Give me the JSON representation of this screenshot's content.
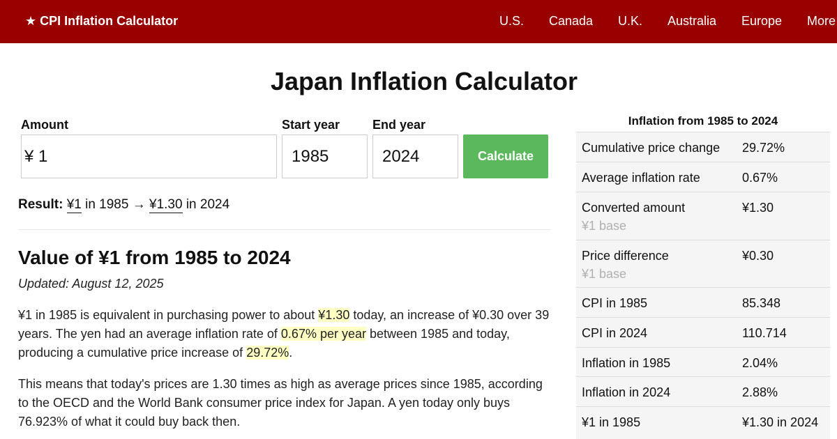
{
  "nav": {
    "brand": "★ CPI Inflation Calculator",
    "links": [
      "U.S.",
      "Canada",
      "U.K.",
      "Australia",
      "Europe",
      "More"
    ]
  },
  "page": {
    "title": "Japan Inflation Calculator"
  },
  "form": {
    "amount_label": "Amount",
    "amount_value": "¥ 1",
    "start_label": "Start year",
    "start_value": "1985",
    "end_label": "End year",
    "end_value": "2024",
    "calculate_label": "Calculate"
  },
  "result": {
    "label": "Result:",
    "from_amount": "¥1",
    "from_text": " in 1985 → ",
    "to_amount": "¥1.30",
    "to_text": " in 2024"
  },
  "article": {
    "heading": "Value of ¥1 from 1985 to 2024",
    "updated": "Updated: August 12, 2025",
    "p1": {
      "t1": "¥1 in 1985 is equivalent in purchasing power to about ",
      "h1": "¥1.30",
      "t2": " today, an increase of ¥0.30 over 39 years. The yen had an average inflation rate of ",
      "h2": "0.67% per year",
      "t3": " between 1985 and today, producing a cumulative price increase of ",
      "h3": "29.72%",
      "t4": "."
    },
    "p2": "This means that today's prices are 1.30 times as high as average prices since 1985, according to the OECD and the World Bank consumer price index for Japan. A yen today only buys 76.923% of what it could buy back then."
  },
  "sidebar": {
    "heading": "Inflation from 1985 to 2024",
    "rows": [
      {
        "label": "Cumulative price change",
        "value": "29.72%"
      },
      {
        "label": "Average inflation rate",
        "value": "0.67%"
      },
      {
        "label": "Converted amount",
        "sub": "¥1 base",
        "value": "¥1.30"
      },
      {
        "label": "Price difference",
        "sub": "¥1 base",
        "value": "¥0.30"
      },
      {
        "label": "CPI in 1985",
        "value": "85.348"
      },
      {
        "label": "CPI in 2024",
        "value": "110.714"
      },
      {
        "label": "Inflation in 1985",
        "value": "2.04%"
      },
      {
        "label": "Inflation in 2024",
        "value": "2.88%"
      },
      {
        "label": "¥1 in 1985",
        "value": "¥1.30 in 2024"
      }
    ]
  }
}
